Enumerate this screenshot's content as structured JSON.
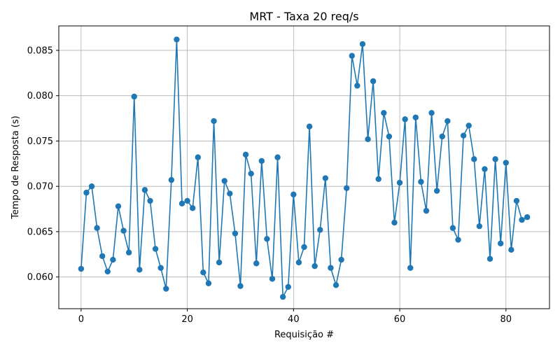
{
  "chart_data": {
    "type": "line",
    "title": "MRT - Taxa 20 req/s",
    "xlabel": "Requisição #",
    "ylabel": "Tempo de Resposta (s)",
    "xlim": [
      -4.2,
      88.2
    ],
    "ylim": [
      0.0565,
      0.0877
    ],
    "x_ticks": [
      0,
      20,
      40,
      60,
      80
    ],
    "x_tick_labels": [
      "0",
      "20",
      "40",
      "60",
      "80"
    ],
    "y_ticks": [
      0.06,
      0.065,
      0.07,
      0.075,
      0.08,
      0.085
    ],
    "y_tick_labels": [
      "0.060",
      "0.065",
      "0.070",
      "0.075",
      "0.080",
      "0.085"
    ],
    "grid": true,
    "color": "#1f77b4",
    "marker": "circle",
    "series": [
      {
        "x": [
          0,
          1,
          2,
          3,
          4,
          5,
          6,
          7,
          8,
          9,
          10,
          11,
          12,
          13,
          14,
          15,
          16,
          17,
          18,
          19,
          20,
          21,
          22,
          23,
          24,
          25,
          26,
          27,
          28,
          29,
          30,
          31,
          32,
          33,
          34,
          35,
          36,
          37,
          38,
          39,
          40,
          41,
          42,
          43,
          44,
          45,
          46,
          47,
          48,
          49,
          50,
          51,
          52,
          53,
          54,
          55,
          56,
          57,
          58,
          59,
          60,
          61,
          62,
          63,
          64,
          65,
          66,
          67,
          68,
          69,
          70,
          71,
          72,
          73,
          74,
          75,
          76,
          77,
          78,
          79,
          80,
          81,
          82,
          83,
          84
        ],
        "values": [
          0.0609,
          0.0693,
          0.07,
          0.0654,
          0.0623,
          0.0606,
          0.0619,
          0.0678,
          0.0651,
          0.0627,
          0.0799,
          0.0608,
          0.0696,
          0.0684,
          0.0631,
          0.061,
          0.0587,
          0.0707,
          0.0862,
          0.0681,
          0.0684,
          0.0676,
          0.0732,
          0.0605,
          0.0593,
          0.0772,
          0.0616,
          0.0706,
          0.0692,
          0.0648,
          0.059,
          0.0735,
          0.0714,
          0.0615,
          0.0728,
          0.0642,
          0.0598,
          0.0732,
          0.0578,
          0.0589,
          0.0691,
          0.0616,
          0.0633,
          0.0766,
          0.0612,
          0.0652,
          0.0709,
          0.061,
          0.0591,
          0.0619,
          0.0698,
          0.0844,
          0.0811,
          0.0857,
          0.0752,
          0.0816,
          0.0708,
          0.0781,
          0.0755,
          0.066,
          0.0704,
          0.0774,
          0.061,
          0.0776,
          0.0705,
          0.0673,
          0.0781,
          0.0695,
          0.0755,
          0.0772,
          0.0654,
          0.0641,
          0.0756,
          0.0767,
          0.073,
          0.0656,
          0.0719,
          0.062,
          0.073,
          0.0637,
          0.0726,
          0.063,
          0.0684,
          0.0663,
          0.0666
        ]
      }
    ]
  }
}
